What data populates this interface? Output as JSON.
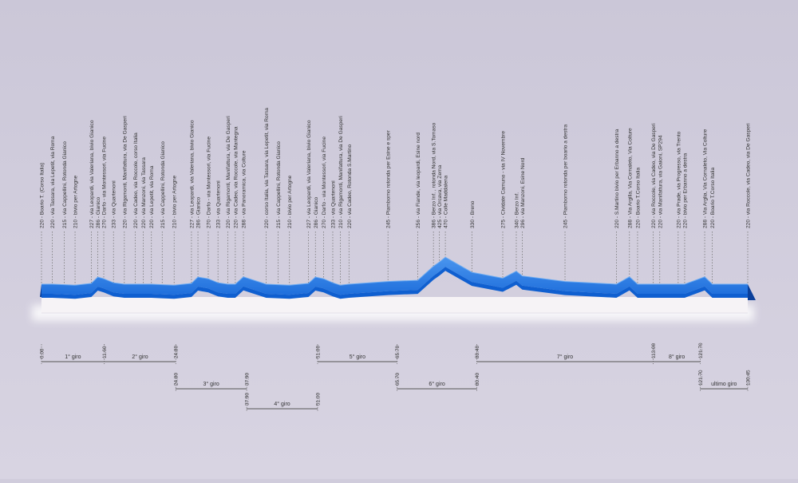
{
  "colors": {
    "background": "#d0ccdc",
    "profile_top": "#2f7fe0",
    "profile_front": "#0f5fd0",
    "profile_edge": "#0a3f9a",
    "base": "#f6f3f6",
    "text": "#333333",
    "guide": "#777777"
  },
  "waypoints": [
    {
      "km": 0.0,
      "elev": 220,
      "label": "220 - Boario T. (Corso Italia)"
    },
    {
      "km": 2.0,
      "elev": 220,
      "label": "220 - via Tassara, via Lepetit, via Roma"
    },
    {
      "km": 4.2,
      "elev": 215,
      "label": "215 - via Cappellini, Rotonda Gianico"
    },
    {
      "km": 6.2,
      "elev": 210,
      "label": "210 - bivio per Artogne"
    },
    {
      "km": 9.2,
      "elev": 227,
      "label": "227 - via Leopardi, via Valeriana, bivio Gianico"
    },
    {
      "km": 10.4,
      "elev": 286,
      "label": "286 - Gianico"
    },
    {
      "km": 11.5,
      "elev": 270,
      "label": "270 - Darfo - via Montessori, via Fucine"
    },
    {
      "km": 13.3,
      "elev": 233,
      "label": "233 - via Quartenoni"
    },
    {
      "km": 15.3,
      "elev": 220,
      "label": "220 - via Rigamonti, Manifattura, via De Gasperi"
    },
    {
      "km": 17.3,
      "elev": 220,
      "label": "220 - via Cadeo, via Roccole, corso Italia"
    },
    {
      "km": 18.8,
      "elev": 220,
      "label": "220 - via Manzoni, via Tassara"
    },
    {
      "km": 20.3,
      "elev": 220,
      "label": "220 - via Lepetit, via Roma"
    },
    {
      "km": 22.3,
      "elev": 215,
      "label": "215 - via Cappellini, Rotonda Gianico"
    },
    {
      "km": 24.5,
      "elev": 210,
      "label": "210 - bivio per Artogne"
    },
    {
      "km": 27.7,
      "elev": 227,
      "label": "227 - via Leopardi, via Valeriana, bivio Gianico"
    },
    {
      "km": 28.9,
      "elev": 286,
      "label": "286 - Gianico"
    },
    {
      "km": 30.8,
      "elev": 270,
      "label": "270 - Darfo - via Montessori, via Fucine"
    },
    {
      "km": 32.6,
      "elev": 233,
      "label": "233 - via Quartenoni"
    },
    {
      "km": 34.4,
      "elev": 220,
      "label": "220 - via Rigamonti, Manifattura, via De Gasperi"
    },
    {
      "km": 35.8,
      "elev": 220,
      "label": "220 - via Cadeo, via Roccole, via Mantegna"
    },
    {
      "km": 37.3,
      "elev": 288,
      "label": "288 - via Panoramica, via Colture"
    },
    {
      "km": 41.5,
      "elev": 220,
      "label": "220 - corso Italia, via Tassara, via Lepetit, via Roma"
    },
    {
      "km": 43.7,
      "elev": 215,
      "label": "215 - via Cappellini, Rotonda Gianico"
    },
    {
      "km": 45.8,
      "elev": 210,
      "label": "210 - bivio per Artogne"
    },
    {
      "km": 49.3,
      "elev": 227,
      "label": "227 - via Leopardi, via Valeriana, bivio Gianico"
    },
    {
      "km": 50.6,
      "elev": 286,
      "label": "286 - Gianico"
    },
    {
      "km": 52.1,
      "elev": 270,
      "label": "270 - Darfo - via Montessori, via Fucine"
    },
    {
      "km": 53.8,
      "elev": 233,
      "label": "233 - via Quartenoni"
    },
    {
      "km": 55.2,
      "elev": 210,
      "label": "210 - via Rigamonti, Manifattura, via De Gasperi"
    },
    {
      "km": 56.8,
      "elev": 220,
      "label": "220 - via Cadeo, Rotonda S.Martino"
    },
    {
      "km": 64.0,
      "elev": 245,
      "label": "245 - Piamborno rotonda per Esine e sper"
    },
    {
      "km": 69.5,
      "elev": 256,
      "label": "256 - via Fiande, via leopardi, Esine nord"
    },
    {
      "km": 72.4,
      "elev": 386,
      "label": "386 - Berzo Inf. , rotonda Nord, via S.Tomaso"
    },
    {
      "km": 73.5,
      "elev": 425,
      "label": "425 - via Orcava, via Zema"
    },
    {
      "km": 74.6,
      "elev": 470,
      "label": "470 - Colle Maddalena"
    },
    {
      "km": 79.5,
      "elev": 330,
      "label": "330 - Breno"
    },
    {
      "km": 85.2,
      "elev": 275,
      "label": "275 - Cividate Camuno - via IV Novembre"
    },
    {
      "km": 87.7,
      "elev": 340,
      "label": "340 - Berzo Inf."
    },
    {
      "km": 88.8,
      "elev": 296,
      "label": "296 - via Manzoni, Esine Nord"
    },
    {
      "km": 96.7,
      "elev": 245,
      "label": "245 - Piamborno rotonda per boario a destra"
    },
    {
      "km": 106.2,
      "elev": 220,
      "label": "220 - S.Martino bivio per Erbanno a destra"
    },
    {
      "km": 108.6,
      "elev": 288,
      "label": "288 - Via Argilla, Via Cornaleto, Via Colture"
    },
    {
      "km": 110.1,
      "elev": 220,
      "label": "220 - Boario T.Corso Italia"
    },
    {
      "km": 113.0,
      "elev": 220,
      "label": "220 - via Roccole, via Cadeo, via De Gasperi"
    },
    {
      "km": 114.2,
      "elev": 220,
      "label": "220 - via Manifattura, via Gaioni, SP294"
    },
    {
      "km": 117.6,
      "elev": 220,
      "label": "220 - via Prade, via Progresso, via Trento"
    },
    {
      "km": 118.8,
      "elev": 220,
      "label": "220 - bivio per Erbanno a destra"
    },
    {
      "km": 122.5,
      "elev": 288,
      "label": "288 - Via Arglia, Via Cornaleto, Via Colture"
    },
    {
      "km": 123.9,
      "elev": 220,
      "label": "220 - Boario T.Corso Italia"
    },
    {
      "km": 130.45,
      "elev": 220,
      "label": "220 - via Roccole, via Cadeo, via De Gasperi"
    }
  ],
  "laps": [
    {
      "name": "1° giro",
      "start": 0.0,
      "end": 11.6,
      "start_label": "0.00",
      "end_label": "11.60",
      "row": 0
    },
    {
      "name": "2° giro",
      "start": 11.6,
      "end": 24.8,
      "start_label": "",
      "end_label": "24.80",
      "row": 0
    },
    {
      "name": "5° giro",
      "start": 51.0,
      "end": 65.7,
      "start_label": "51.00",
      "end_label": "65.70",
      "row": 0
    },
    {
      "name": "7° giro",
      "start": 80.4,
      "end": 113.0,
      "start_label": "80.40",
      "end_label": "113.00",
      "row": 0
    },
    {
      "name": "8° giro",
      "start": 113.0,
      "end": 121.7,
      "start_label": "",
      "end_label": "121.70",
      "row": 0
    },
    {
      "name": "3° giro",
      "start": 24.8,
      "end": 37.9,
      "start_label": "24.80",
      "end_label": "37.90",
      "row": 1
    },
    {
      "name": "6° giro",
      "start": 65.7,
      "end": 80.4,
      "start_label": "65.70",
      "end_label": "80.40",
      "row": 1
    },
    {
      "name": "ultimo giro",
      "start": 121.7,
      "end": 130.45,
      "start_label": "121.70",
      "end_label": "130.45",
      "row": 1
    },
    {
      "name": "4° giro",
      "start": 37.9,
      "end": 51.0,
      "start_label": "37.90",
      "end_label": "51.00",
      "row": 2
    }
  ]
}
